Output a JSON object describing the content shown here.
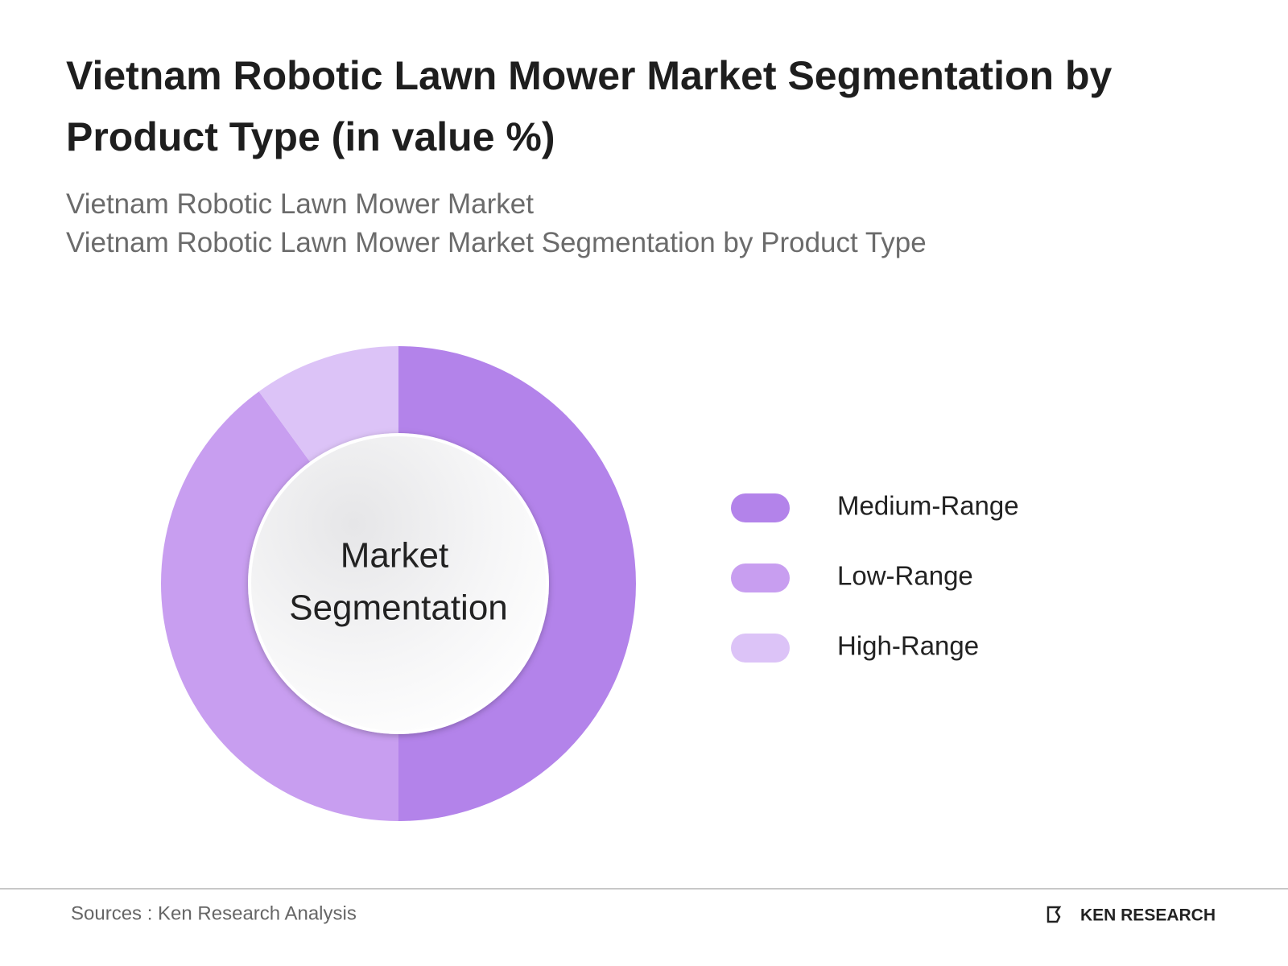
{
  "chart_data": {
    "type": "donut",
    "title": "Vietnam Robotic Lawn Mower Market Segmentation by Product Type (in value %)",
    "subtitle": [
      "Vietnam Robotic Lawn Mower Market",
      "Vietnam Robotic Lawn Mower Market Segmentation by Product Type"
    ],
    "center_label": [
      "Market",
      "Segmentation"
    ],
    "categories": [
      "Medium-Range",
      "Low-Range",
      "High-Range"
    ],
    "values": [
      50,
      40,
      10
    ],
    "colors": [
      "#b383ea",
      "#c89ef0",
      "#dcc3f7"
    ],
    "legend": "right"
  },
  "footer": {
    "source": "Sources : Ken Research Analysis",
    "logo": "KEN RESEARCH"
  }
}
